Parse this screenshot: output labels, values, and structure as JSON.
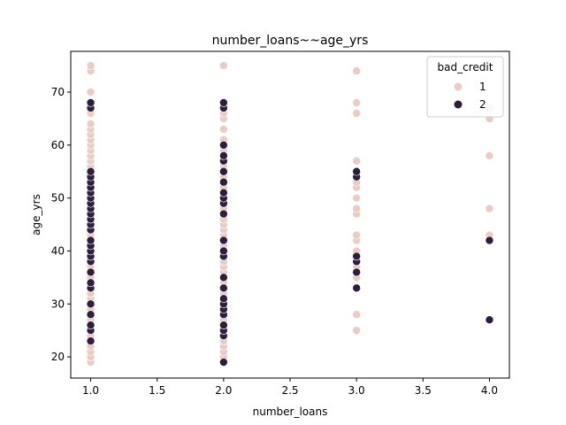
{
  "chart_data": {
    "type": "scatter",
    "title": "number_loans~~age_yrs",
    "xlabel": "number_loans",
    "ylabel": "age_yrs",
    "xlim": [
      0.85,
      4.15
    ],
    "ylim": [
      16.0,
      77.7
    ],
    "xticks": [
      "1.0",
      "1.5",
      "2.0",
      "2.5",
      "3.0",
      "3.5",
      "4.0"
    ],
    "yticks": [
      "20",
      "30",
      "40",
      "50",
      "60",
      "70"
    ],
    "grid": false,
    "legend": {
      "title": "bad_credit",
      "placement": "top-right"
    },
    "series": [
      {
        "name": "1",
        "color": "#eccbc4",
        "points": [
          [
            1,
            19
          ],
          [
            1,
            20
          ],
          [
            1,
            21
          ],
          [
            1,
            22
          ],
          [
            1,
            23
          ],
          [
            1,
            24
          ],
          [
            1,
            25
          ],
          [
            1,
            26
          ],
          [
            1,
            27
          ],
          [
            1,
            28
          ],
          [
            1,
            29
          ],
          [
            1,
            30
          ],
          [
            1,
            31
          ],
          [
            1,
            32
          ],
          [
            1,
            33
          ],
          [
            1,
            34
          ],
          [
            1,
            35
          ],
          [
            1,
            36
          ],
          [
            1,
            37
          ],
          [
            1,
            38
          ],
          [
            1,
            39
          ],
          [
            1,
            40
          ],
          [
            1,
            41
          ],
          [
            1,
            42
          ],
          [
            1,
            43
          ],
          [
            1,
            44
          ],
          [
            1,
            45
          ],
          [
            1,
            46
          ],
          [
            1,
            47
          ],
          [
            1,
            48
          ],
          [
            1,
            49
          ],
          [
            1,
            50
          ],
          [
            1,
            51
          ],
          [
            1,
            52
          ],
          [
            1,
            53
          ],
          [
            1,
            54
          ],
          [
            1,
            55
          ],
          [
            1,
            56
          ],
          [
            1,
            57
          ],
          [
            1,
            58
          ],
          [
            1,
            59
          ],
          [
            1,
            60
          ],
          [
            1,
            61
          ],
          [
            1,
            62
          ],
          [
            1,
            63
          ],
          [
            1,
            64
          ],
          [
            1,
            66
          ],
          [
            1,
            67
          ],
          [
            1,
            68
          ],
          [
            1,
            70
          ],
          [
            1,
            74
          ],
          [
            1,
            75
          ],
          [
            2,
            19
          ],
          [
            2,
            20
          ],
          [
            2,
            21
          ],
          [
            2,
            22
          ],
          [
            2,
            23
          ],
          [
            2,
            24
          ],
          [
            2,
            25
          ],
          [
            2,
            26
          ],
          [
            2,
            27
          ],
          [
            2,
            28
          ],
          [
            2,
            29
          ],
          [
            2,
            30
          ],
          [
            2,
            31
          ],
          [
            2,
            32
          ],
          [
            2,
            33
          ],
          [
            2,
            34
          ],
          [
            2,
            35
          ],
          [
            2,
            36
          ],
          [
            2,
            37
          ],
          [
            2,
            38
          ],
          [
            2,
            39
          ],
          [
            2,
            40
          ],
          [
            2,
            41
          ],
          [
            2,
            42
          ],
          [
            2,
            43
          ],
          [
            2,
            44
          ],
          [
            2,
            45
          ],
          [
            2,
            46
          ],
          [
            2,
            47
          ],
          [
            2,
            48
          ],
          [
            2,
            49
          ],
          [
            2,
            50
          ],
          [
            2,
            51
          ],
          [
            2,
            52
          ],
          [
            2,
            53
          ],
          [
            2,
            54
          ],
          [
            2,
            55
          ],
          [
            2,
            56
          ],
          [
            2,
            57
          ],
          [
            2,
            58
          ],
          [
            2,
            59
          ],
          [
            2,
            60
          ],
          [
            2,
            61
          ],
          [
            2,
            63
          ],
          [
            2,
            65
          ],
          [
            2,
            66
          ],
          [
            2,
            67
          ],
          [
            2,
            68
          ],
          [
            2,
            75
          ],
          [
            3,
            25
          ],
          [
            3,
            28
          ],
          [
            3,
            35
          ],
          [
            3,
            36
          ],
          [
            3,
            37
          ],
          [
            3,
            38
          ],
          [
            3,
            40
          ],
          [
            3,
            42
          ],
          [
            3,
            43
          ],
          [
            3,
            47
          ],
          [
            3,
            48
          ],
          [
            3,
            50
          ],
          [
            3,
            52
          ],
          [
            3,
            53
          ],
          [
            3,
            55
          ],
          [
            3,
            57
          ],
          [
            3,
            66
          ],
          [
            3,
            68
          ],
          [
            3,
            74
          ],
          [
            4,
            42
          ],
          [
            4,
            43
          ],
          [
            4,
            48
          ],
          [
            4,
            58
          ],
          [
            4,
            65
          ],
          [
            4,
            67
          ]
        ]
      },
      {
        "name": "2",
        "color": "#2d1e3e",
        "points": [
          [
            1,
            23
          ],
          [
            1,
            25
          ],
          [
            1,
            26
          ],
          [
            1,
            28
          ],
          [
            1,
            30
          ],
          [
            1,
            33
          ],
          [
            1,
            34
          ],
          [
            1,
            36
          ],
          [
            1,
            38
          ],
          [
            1,
            39
          ],
          [
            1,
            40
          ],
          [
            1,
            41
          ],
          [
            1,
            42
          ],
          [
            1,
            44
          ],
          [
            1,
            45
          ],
          [
            1,
            46
          ],
          [
            1,
            47
          ],
          [
            1,
            48
          ],
          [
            1,
            49
          ],
          [
            1,
            50
          ],
          [
            1,
            51
          ],
          [
            1,
            52
          ],
          [
            1,
            53
          ],
          [
            1,
            54
          ],
          [
            1,
            55
          ],
          [
            1,
            67
          ],
          [
            1,
            68
          ],
          [
            2,
            19
          ],
          [
            2,
            24
          ],
          [
            2,
            25
          ],
          [
            2,
            26
          ],
          [
            2,
            28
          ],
          [
            2,
            29
          ],
          [
            2,
            30
          ],
          [
            2,
            31
          ],
          [
            2,
            33
          ],
          [
            2,
            35
          ],
          [
            2,
            39
          ],
          [
            2,
            40
          ],
          [
            2,
            42
          ],
          [
            2,
            47
          ],
          [
            2,
            49
          ],
          [
            2,
            50
          ],
          [
            2,
            51
          ],
          [
            2,
            53
          ],
          [
            2,
            55
          ],
          [
            2,
            57
          ],
          [
            2,
            58
          ],
          [
            2,
            60
          ],
          [
            2,
            67
          ],
          [
            2,
            68
          ],
          [
            3,
            33
          ],
          [
            3,
            36
          ],
          [
            3,
            38
          ],
          [
            3,
            39
          ],
          [
            3,
            54
          ],
          [
            3,
            55
          ],
          [
            4,
            27
          ],
          [
            4,
            42
          ]
        ]
      }
    ]
  }
}
